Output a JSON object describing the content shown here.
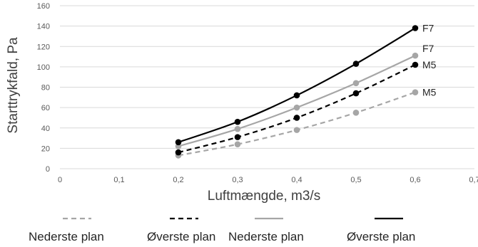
{
  "chart_data": {
    "type": "line",
    "title": "",
    "xlabel": "Luftmængde, m3/s",
    "ylabel": "Starttrykfald, Pa",
    "xlim": [
      0,
      0.7
    ],
    "ylim": [
      0,
      160
    ],
    "x_ticks": [
      "0",
      "0,1",
      "0,2",
      "0,3",
      "0,4",
      "0,5",
      "0,6",
      "0,7"
    ],
    "y_ticks": [
      "0",
      "20",
      "40",
      "60",
      "80",
      "100",
      "120",
      "140",
      "160"
    ],
    "grid": "horizontal",
    "legend_placement": "bottom",
    "x": [
      0.2,
      0.3,
      0.4,
      0.5,
      0.6
    ],
    "series": [
      {
        "name": "Nederste plan",
        "end_label": "M5",
        "color": "#a6a6a6",
        "dash": "dashed",
        "values": [
          13,
          24,
          38,
          55,
          75
        ]
      },
      {
        "name": "Øverste plan",
        "end_label": "M5",
        "color": "#000000",
        "dash": "dashed",
        "values": [
          16,
          31,
          50,
          74,
          102
        ]
      },
      {
        "name": "Nederste plan",
        "end_label": "F7",
        "color": "#a6a6a6",
        "dash": "solid",
        "values": [
          22,
          39,
          60,
          84,
          111
        ]
      },
      {
        "name": "Øverste plan",
        "end_label": "F7",
        "color": "#000000",
        "dash": "solid",
        "values": [
          26,
          46,
          72,
          103,
          138
        ]
      }
    ]
  }
}
